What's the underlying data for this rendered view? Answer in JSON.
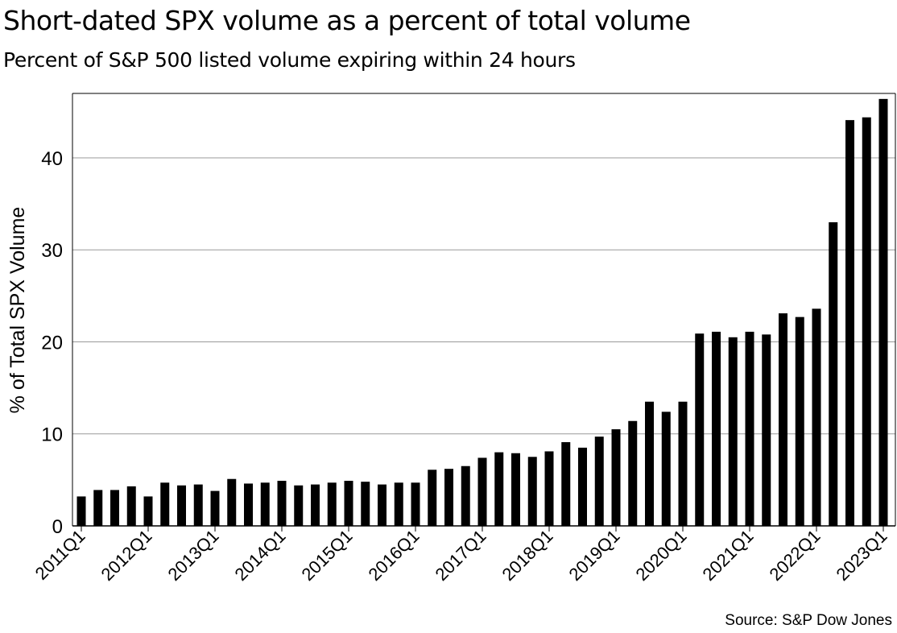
{
  "chart_data": {
    "type": "bar",
    "title": "Short-dated SPX volume as a percent of total volume",
    "subtitle": "Percent of S&P 500 listed volume expiring within 24 hours",
    "xlabel": "",
    "ylabel": "% of Total SPX Volume",
    "ylim": [
      0,
      47
    ],
    "yticks": [
      0,
      10,
      20,
      30,
      40
    ],
    "grid": true,
    "bar_color": "#000000",
    "grid_color": "#999999",
    "categories": [
      "2011Q1",
      "2011Q2",
      "2011Q3",
      "2011Q4",
      "2012Q1",
      "2012Q2",
      "2012Q3",
      "2012Q4",
      "2013Q1",
      "2013Q2",
      "2013Q3",
      "2013Q4",
      "2014Q1",
      "2014Q2",
      "2014Q3",
      "2014Q4",
      "2015Q1",
      "2015Q2",
      "2015Q3",
      "2015Q4",
      "2016Q1",
      "2016Q2",
      "2016Q3",
      "2016Q4",
      "2017Q1",
      "2017Q2",
      "2017Q3",
      "2017Q4",
      "2018Q1",
      "2018Q2",
      "2018Q3",
      "2018Q4",
      "2019Q1",
      "2019Q2",
      "2019Q3",
      "2019Q4",
      "2020Q1",
      "2020Q2",
      "2020Q3",
      "2020Q4",
      "2021Q1",
      "2021Q2",
      "2021Q3",
      "2021Q4",
      "2022Q1",
      "2022Q2",
      "2022Q3",
      "2022Q4",
      "2023Q1"
    ],
    "x_tick_labels": [
      "2011Q1",
      "2012Q1",
      "2013Q1",
      "2014Q1",
      "2015Q1",
      "2016Q1",
      "2017Q1",
      "2018Q1",
      "2019Q1",
      "2020Q1",
      "2021Q1",
      "2022Q1",
      "2023Q1"
    ],
    "values": [
      3.2,
      3.9,
      3.9,
      4.3,
      3.2,
      4.7,
      4.4,
      4.5,
      3.8,
      5.1,
      4.6,
      4.7,
      4.9,
      4.4,
      4.5,
      4.7,
      4.9,
      4.8,
      4.5,
      4.7,
      4.7,
      6.1,
      6.2,
      6.5,
      7.4,
      8.0,
      7.9,
      7.5,
      8.1,
      9.1,
      8.5,
      9.7,
      10.5,
      11.4,
      13.5,
      12.4,
      13.5,
      20.9,
      21.1,
      20.5,
      21.1,
      20.8,
      23.1,
      22.7,
      23.6,
      33.0,
      44.1,
      44.4,
      46.4
    ],
    "source": "Source: S&P Dow Jones"
  }
}
